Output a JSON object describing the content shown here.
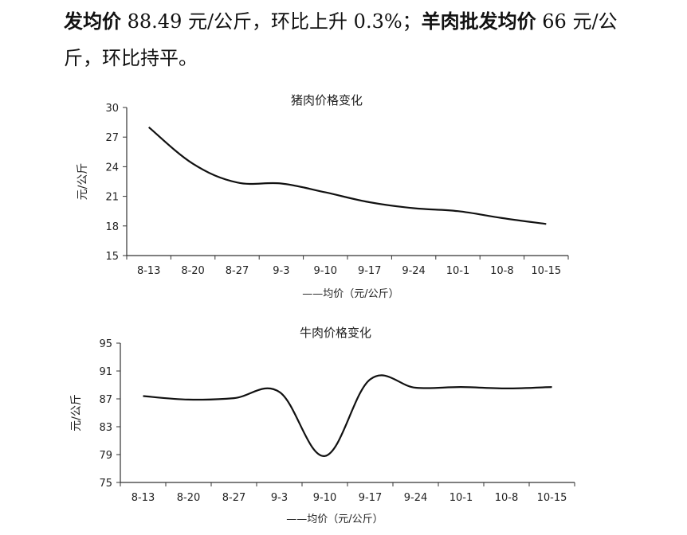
{
  "paragraph": {
    "seg1": "发均价",
    "seg2": " 88.49 元/公斤，环比上升 0.3%；",
    "seg3": "羊肉批发均价",
    "seg4": " 66 元/公斤，环比持平。"
  },
  "chart_data": [
    {
      "type": "line",
      "title": "猪肉价格变化",
      "ylabel": "元/公斤",
      "legend": "——均价（元/公斤）",
      "legend_position": "bottom",
      "ylim": [
        15,
        30
      ],
      "yticks": [
        "15",
        "18",
        "21",
        "24",
        "27",
        "30"
      ],
      "categories": [
        "8-13",
        "8-20",
        "8-27",
        "9-3",
        "9-10",
        "9-17",
        "9-24",
        "10-1",
        "10-8",
        "10-15"
      ],
      "series": [
        {
          "values": [
            28.0,
            24.3,
            22.4,
            22.3,
            21.4,
            20.4,
            19.8,
            19.5,
            18.8,
            18.2
          ]
        }
      ],
      "grid": false
    },
    {
      "type": "line",
      "title": "牛肉价格变化",
      "ylabel": "元/公斤",
      "legend": "——均价（元/公斤）",
      "legend_position": "bottom",
      "ylim": [
        75,
        95
      ],
      "yticks": [
        "75",
        "79",
        "83",
        "87",
        "91",
        "95"
      ],
      "categories": [
        "8-13",
        "8-20",
        "8-27",
        "9-3",
        "9-10",
        "9-17",
        "9-24",
        "10-1",
        "10-8",
        "10-15"
      ],
      "series": [
        {
          "values": [
            87.4,
            86.9,
            87.1,
            88.0,
            78.8,
            89.8,
            88.6,
            88.7,
            88.5,
            88.7
          ]
        }
      ],
      "grid": false
    }
  ]
}
